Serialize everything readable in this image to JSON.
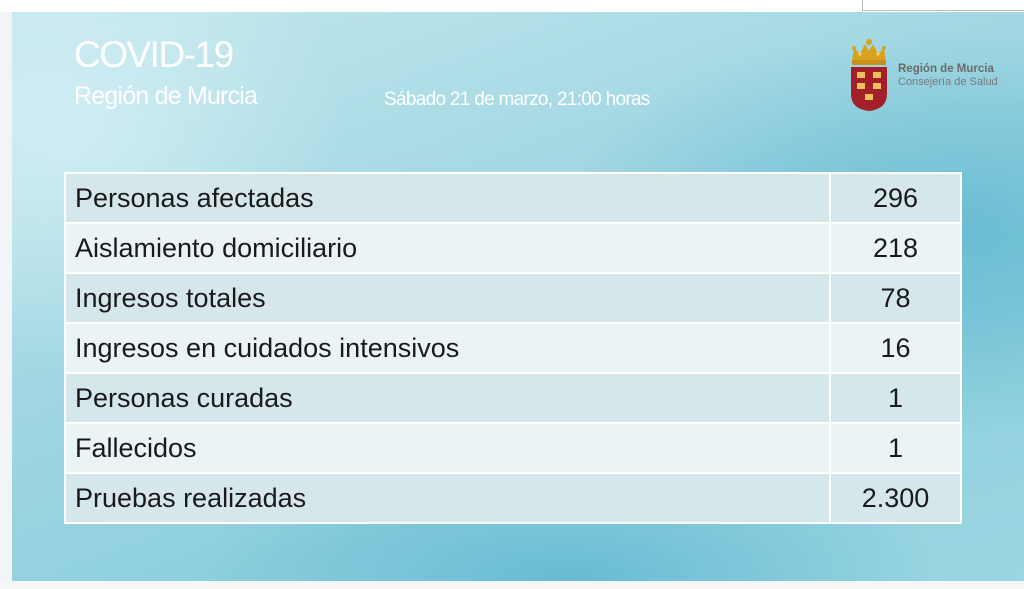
{
  "header": {
    "title": "COVID-19",
    "region": "Región de Murcia",
    "date": "Sábado 21 de marzo, 21:00 horas"
  },
  "logo": {
    "name": "Región de Murcia",
    "department": "Consejería de Salud",
    "icon": "coat-of-arms"
  },
  "colors": {
    "background_accent": "#8dcfdd",
    "row_dark": "#d6e7ec",
    "row_light": "#eaf3f5",
    "shield_red": "#a3202a",
    "crown_gold": "#d8a21f"
  },
  "stats": [
    {
      "label": "Personas afectadas",
      "value": "296"
    },
    {
      "label": "Aislamiento domiciliario",
      "value": "218"
    },
    {
      "label": "Ingresos totales",
      "value": "78"
    },
    {
      "label": "Ingresos en cuidados intensivos",
      "value": "16"
    },
    {
      "label": "Personas curadas",
      "value": "1"
    },
    {
      "label": "Fallecidos",
      "value": "1"
    },
    {
      "label": "Pruebas realizadas",
      "value": "2.300"
    }
  ]
}
